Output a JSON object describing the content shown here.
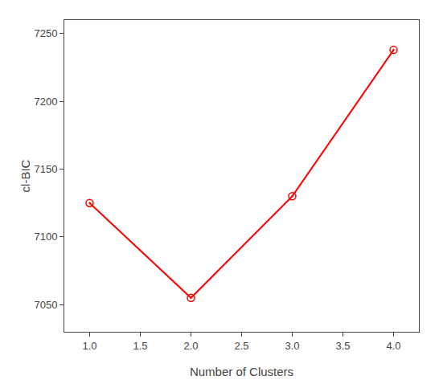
{
  "chart_data": {
    "type": "line",
    "x": [
      1,
      2,
      3,
      4
    ],
    "values": [
      7125,
      7055,
      7130,
      7238
    ],
    "color": "#FF0000",
    "marker": "circle",
    "line_style": "solid",
    "xlabel": "Number of Clusters",
    "ylabel": "cl-BIC",
    "xlim": [
      0.75,
      4.25
    ],
    "ylim": [
      7030,
      7260
    ],
    "xticks": [
      {
        "value": 1.0,
        "label": "1.0"
      },
      {
        "value": 1.5,
        "label": "1.5"
      },
      {
        "value": 2.0,
        "label": "2.0"
      },
      {
        "value": 2.5,
        "label": "2.5"
      },
      {
        "value": 3.0,
        "label": "3.0"
      },
      {
        "value": 3.5,
        "label": "3.5"
      },
      {
        "value": 4.0,
        "label": "4.0"
      }
    ],
    "yticks": [
      7050,
      7100,
      7150,
      7200,
      7250
    ],
    "grid": false
  }
}
